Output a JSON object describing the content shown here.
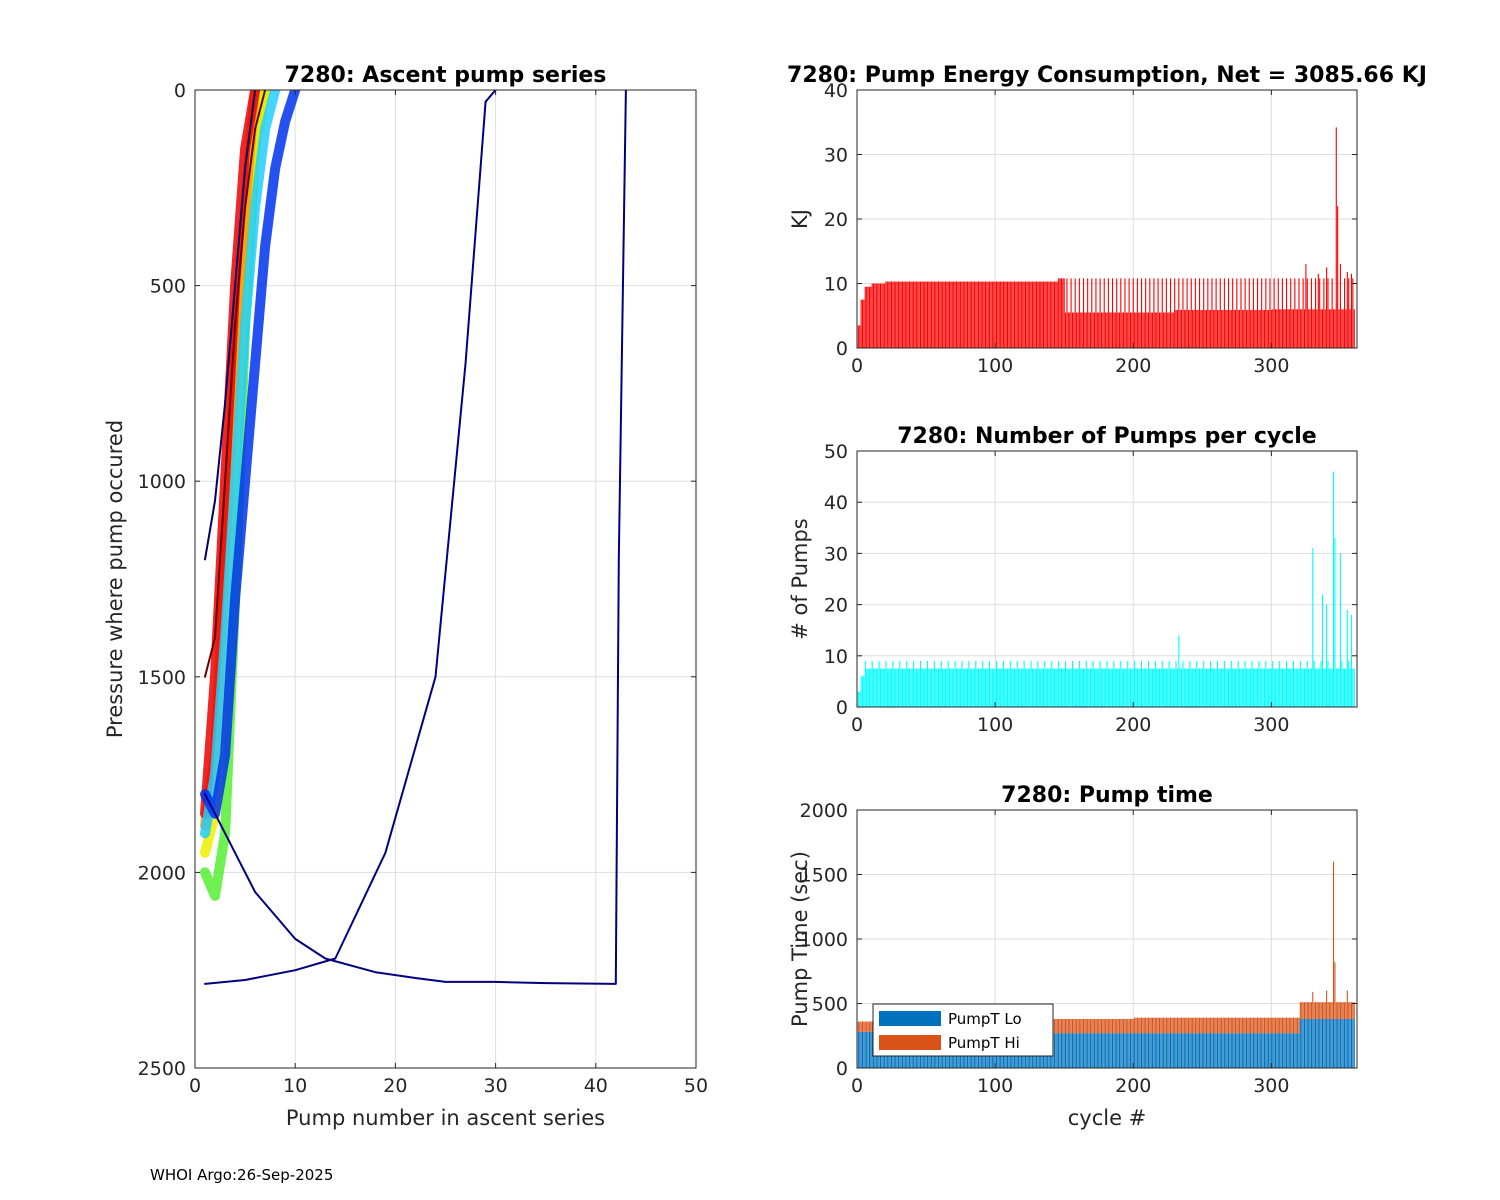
{
  "figure": {
    "footer": "WHOI Argo:26-Sep-2025"
  },
  "chart_data": [
    {
      "id": "ascent",
      "type": "line",
      "title": "7280: Ascent pump series",
      "xlabel": "Pump number in ascent series",
      "ylabel": "Pressure where pump occured",
      "xlim": [
        0,
        50
      ],
      "ylim": [
        2500,
        0
      ],
      "y_reversed": true,
      "grid": true,
      "xticks": [
        0,
        10,
        20,
        30,
        40,
        50
      ],
      "yticks": [
        0,
        500,
        1000,
        1500,
        2000,
        2500
      ],
      "colormap": "jet (color by cycle #)",
      "representative_series": [
        {
          "name": "early cycles (green)",
          "color": "#55ee33",
          "x": [
            1,
            2,
            3,
            4,
            5,
            6,
            7
          ],
          "y": [
            2000,
            2060,
            1900,
            1300,
            600,
            150,
            0
          ]
        },
        {
          "name": "mid cycles (yellow)",
          "color": "#eeee00",
          "x": [
            1,
            2,
            3,
            4,
            5,
            6,
            7
          ],
          "y": [
            1950,
            1850,
            1400,
            900,
            450,
            150,
            0
          ]
        },
        {
          "name": "mid cycles (orange)",
          "color": "#ff9900",
          "x": [
            1,
            2,
            3,
            4,
            5,
            6
          ],
          "y": [
            1880,
            1700,
            1200,
            700,
            300,
            0
          ]
        },
        {
          "name": "mid cycles (red)",
          "color": "#ee0000",
          "x": [
            1,
            2,
            3,
            4,
            5,
            6
          ],
          "y": [
            1850,
            1500,
            1000,
            500,
            150,
            0
          ]
        },
        {
          "name": "later cycles (cyan)",
          "color": "#22ccff",
          "x": [
            1,
            2,
            3,
            4,
            5,
            6,
            7,
            8
          ],
          "y": [
            1900,
            1750,
            1400,
            1000,
            600,
            300,
            100,
            0
          ]
        },
        {
          "name": "later cycles (blue)",
          "color": "#0033ee",
          "x": [
            1,
            2,
            3,
            4,
            5,
            6,
            7,
            8,
            9,
            10
          ],
          "y": [
            1800,
            1850,
            1700,
            1300,
            1000,
            700,
            400,
            200,
            80,
            0
          ]
        },
        {
          "name": "short ascent (dark red)",
          "color": "#660000",
          "x": [
            1,
            2,
            3,
            4,
            5,
            6,
            7
          ],
          "y": [
            1500,
            1400,
            1000,
            600,
            300,
            100,
            0
          ]
        },
        {
          "name": "short ascent (navy)",
          "color": "#000066",
          "x": [
            1,
            2,
            3,
            4,
            5,
            6
          ],
          "y": [
            1200,
            1050,
            800,
            500,
            200,
            0
          ]
        },
        {
          "name": "deep ascent A (navy)",
          "color": "#000080",
          "x": [
            1,
            5,
            10,
            14,
            19,
            24,
            27,
            29,
            30
          ],
          "y": [
            2285,
            2275,
            2250,
            2220,
            1950,
            1500,
            700,
            30,
            0
          ]
        },
        {
          "name": "deep ascent B (navy)",
          "color": "#000080",
          "x": [
            1,
            3,
            6,
            10,
            13,
            18,
            22,
            25,
            30,
            35,
            42,
            42.3,
            43
          ],
          "y": [
            1800,
            1900,
            2050,
            2170,
            2220,
            2255,
            2270,
            2280,
            2280,
            2283,
            2285,
            1200,
            0
          ]
        }
      ]
    },
    {
      "id": "energy",
      "type": "bar",
      "title": "7280: Pump Energy Consumption,  Net = 3085.66 KJ",
      "xlabel": "",
      "ylabel": "KJ",
      "xlim": [
        0,
        362
      ],
      "ylim": [
        0,
        40
      ],
      "xticks": [
        0,
        100,
        200,
        300
      ],
      "yticks": [
        0,
        10,
        20,
        30,
        40
      ],
      "grid": true,
      "bar_color": "#ff0000",
      "cycles": 360,
      "base_levels": [
        {
          "from": 1,
          "to": 2,
          "value": 3.5
        },
        {
          "from": 3,
          "to": 5,
          "value": 7.5
        },
        {
          "from": 6,
          "to": 10,
          "value": 9.5
        },
        {
          "from": 11,
          "to": 20,
          "value": 10.0
        },
        {
          "from": 21,
          "to": 145,
          "value": 10.3
        },
        {
          "from": 146,
          "to": 150,
          "value": 10.8
        },
        {
          "from": 151,
          "to": 230,
          "value": 5.5
        },
        {
          "from": 231,
          "to": 300,
          "value": 5.9
        },
        {
          "from": 301,
          "to": 360,
          "value": 6.0
        }
      ],
      "periodic_peak": {
        "from": 146,
        "every": 3,
        "value": 10.8
      },
      "spikes": [
        {
          "cycle": 325,
          "value": 13.0
        },
        {
          "cycle": 334,
          "value": 11.5
        },
        {
          "cycle": 340,
          "value": 12.5
        },
        {
          "cycle": 347,
          "value": 34.2
        },
        {
          "cycle": 348,
          "value": 22.0
        },
        {
          "cycle": 350,
          "value": 13.0
        },
        {
          "cycle": 355,
          "value": 11.8
        },
        {
          "cycle": 358,
          "value": 11.5
        }
      ]
    },
    {
      "id": "npumps",
      "type": "bar",
      "title": "7280: Number of Pumps per cycle",
      "xlabel": "",
      "ylabel": "# of Pumps",
      "xlim": [
        0,
        362
      ],
      "ylim": [
        0,
        50
      ],
      "xticks": [
        0,
        100,
        200,
        300
      ],
      "yticks": [
        0,
        10,
        20,
        30,
        40,
        50
      ],
      "grid": true,
      "bar_color": "#00ffff",
      "cycles": 360,
      "base_levels": [
        {
          "from": 1,
          "to": 2,
          "value": 3
        },
        {
          "from": 3,
          "to": 5,
          "value": 6
        },
        {
          "from": 6,
          "to": 145,
          "value": 7.5
        },
        {
          "from": 146,
          "to": 360,
          "value": 7.5
        }
      ],
      "periodic_peak": {
        "from": 6,
        "every": 5,
        "value": 9
      },
      "spikes": [
        {
          "cycle": 233,
          "value": 14
        },
        {
          "cycle": 330,
          "value": 31
        },
        {
          "cycle": 337,
          "value": 22
        },
        {
          "cycle": 340,
          "value": 20
        },
        {
          "cycle": 345,
          "value": 46
        },
        {
          "cycle": 346,
          "value": 33
        },
        {
          "cycle": 350,
          "value": 30
        },
        {
          "cycle": 355,
          "value": 19
        },
        {
          "cycle": 358,
          "value": 18
        }
      ]
    },
    {
      "id": "pumptime",
      "type": "bar",
      "stacked": true,
      "title": "7280: Pump time",
      "xlabel": "cycle #",
      "ylabel": "Pump Time (sec)",
      "xlim": [
        0,
        362
      ],
      "ylim": [
        0,
        2000
      ],
      "xticks": [
        0,
        100,
        200,
        300
      ],
      "yticks": [
        0,
        500,
        1000,
        1500,
        2000
      ],
      "grid": true,
      "legend_position": "bottom-left",
      "cycles": 360,
      "series": [
        {
          "name": "PumpT Lo",
          "color": "#0072bd",
          "base_levels": [
            {
              "from": 1,
              "to": 135,
              "value": 280
            },
            {
              "from": 136,
              "to": 320,
              "value": 270
            },
            {
              "from": 321,
              "to": 360,
              "value": 380
            }
          ]
        },
        {
          "name": "PumpT Hi",
          "color": "#d95319",
          "base_levels": [
            {
              "from": 1,
              "to": 135,
              "value": 80
            },
            {
              "from": 136,
              "to": 200,
              "value": 110
            },
            {
              "from": 201,
              "to": 320,
              "value": 120
            },
            {
              "from": 321,
              "to": 360,
              "value": 130
            }
          ]
        }
      ],
      "spikes_total": [
        {
          "cycle": 345,
          "value": 1600
        },
        {
          "cycle": 346,
          "value": 820
        },
        {
          "cycle": 330,
          "value": 590
        },
        {
          "cycle": 340,
          "value": 600
        },
        {
          "cycle": 355,
          "value": 600
        }
      ]
    }
  ]
}
